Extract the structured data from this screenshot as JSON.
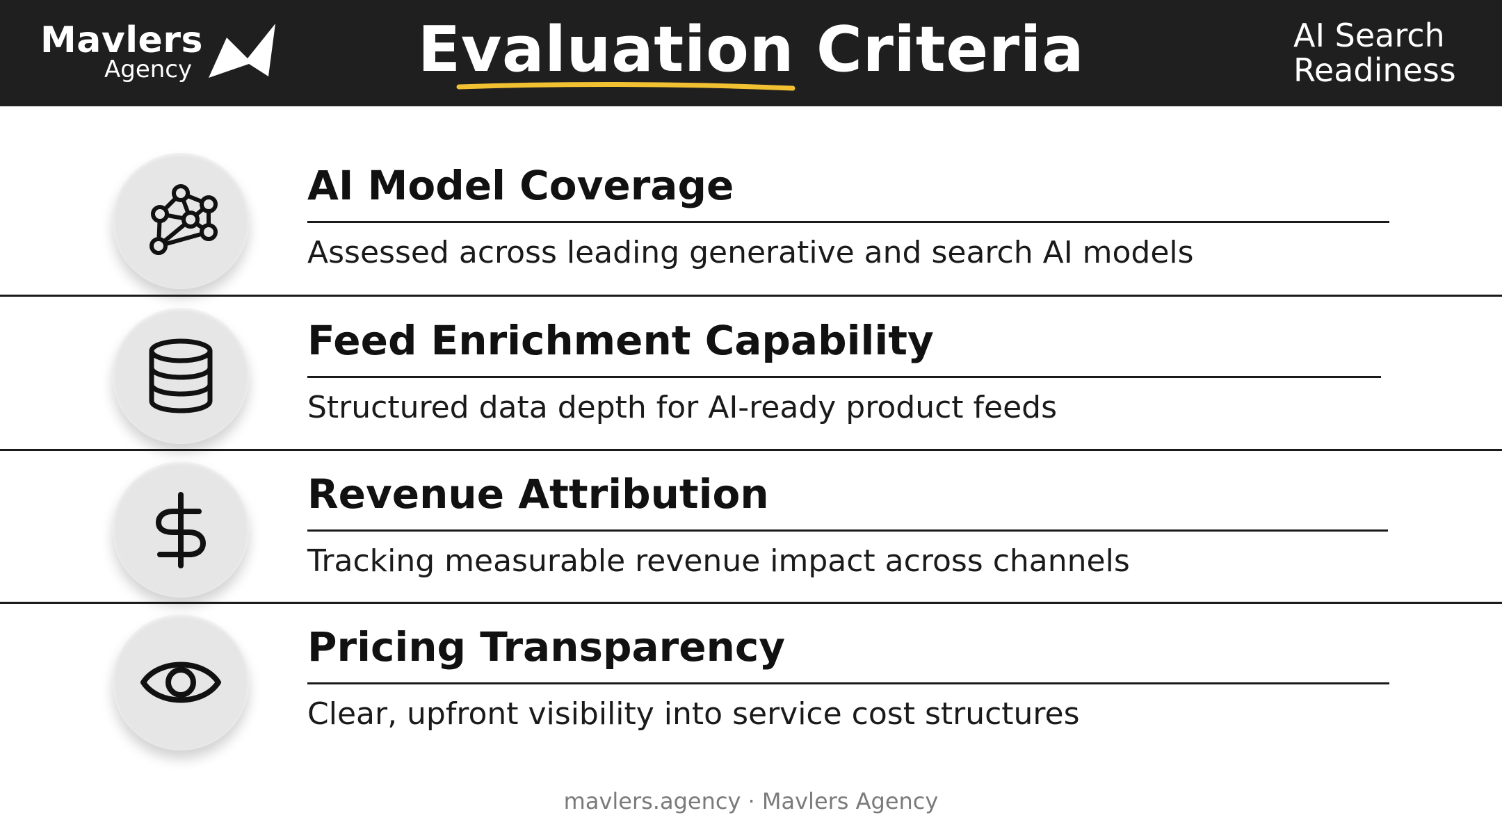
{
  "brand": {
    "name": "Mavlers",
    "sub": "Agency"
  },
  "header": {
    "title": "Evaluation Criteria",
    "tag": "AI Search Readiness"
  },
  "colors": {
    "header_bg": "#1f1f1f",
    "accent_underline": "#f2c132",
    "circle_bg": "#e6e6e6"
  },
  "criteria": [
    {
      "icon": "network-icon",
      "title": "AI Model Coverage",
      "desc": "Assessed across leading generative and search AI models"
    },
    {
      "icon": "database-icon",
      "title": "Feed Enrichment Capability",
      "desc": "Structured data depth for AI-ready product feeds"
    },
    {
      "icon": "dollar-icon",
      "title": "Revenue Attribution",
      "desc": "Tracking measurable revenue impact across channels"
    },
    {
      "icon": "eye-icon",
      "title": "Pricing Transparency",
      "desc": "Clear, upfront visibility into service cost structures"
    }
  ],
  "footer": {
    "text": "mavlers.agency · Mavlers Agency"
  }
}
